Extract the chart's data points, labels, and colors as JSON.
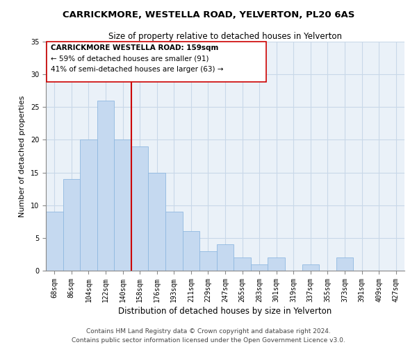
{
  "title": "CARRICKMORE, WESTELLA ROAD, YELVERTON, PL20 6AS",
  "subtitle": "Size of property relative to detached houses in Yelverton",
  "xlabel": "Distribution of detached houses by size in Yelverton",
  "ylabel": "Number of detached properties",
  "bar_labels": [
    "68sqm",
    "86sqm",
    "104sqm",
    "122sqm",
    "140sqm",
    "158sqm",
    "176sqm",
    "193sqm",
    "211sqm",
    "229sqm",
    "247sqm",
    "265sqm",
    "283sqm",
    "301sqm",
    "319sqm",
    "337sqm",
    "355sqm",
    "373sqm",
    "391sqm",
    "409sqm",
    "427sqm"
  ],
  "bar_values": [
    9,
    14,
    20,
    26,
    20,
    19,
    15,
    9,
    6,
    3,
    4,
    2,
    1,
    2,
    0,
    1,
    0,
    2,
    0,
    0,
    0
  ],
  "bar_color": "#c5d9f0",
  "bar_edge_color": "#8fb8e0",
  "vline_color": "#cc0000",
  "vline_x_index": 4.5,
  "bg_color": "#eaf1f8",
  "ylim": [
    0,
    35
  ],
  "yticks": [
    0,
    5,
    10,
    15,
    20,
    25,
    30,
    35
  ],
  "annotation_title": "CARRICKMORE WESTELLA ROAD: 159sqm",
  "annotation_line1": "← 59% of detached houses are smaller (91)",
  "annotation_line2": "41% of semi-detached houses are larger (63) →",
  "footer_line1": "Contains HM Land Registry data © Crown copyright and database right 2024.",
  "footer_line2": "Contains public sector information licensed under the Open Government Licence v3.0.",
  "title_fontsize": 9.5,
  "subtitle_fontsize": 8.5,
  "xlabel_fontsize": 8.5,
  "ylabel_fontsize": 8,
  "tick_fontsize": 7,
  "annot_fontsize": 7.5,
  "footer_fontsize": 6.5,
  "grid_color": "#c8d8e8"
}
